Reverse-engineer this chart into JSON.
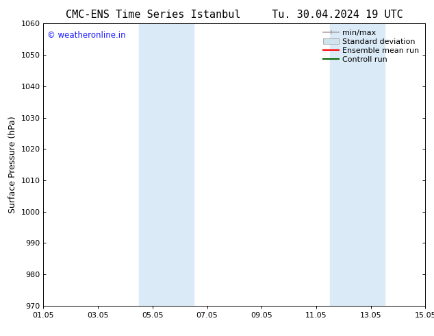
{
  "title": "CMC-ENS Time Series Istanbul     Tu. 30.04.2024 19 UTC",
  "ylabel": "Surface Pressure (hPa)",
  "xlabel_ticks": [
    "01.05",
    "03.05",
    "05.05",
    "07.05",
    "09.05",
    "11.05",
    "13.05",
    "15.05"
  ],
  "xtick_positions": [
    0,
    2,
    4,
    6,
    8,
    10,
    12,
    14
  ],
  "xlim": [
    0,
    14
  ],
  "ylim": [
    970,
    1060
  ],
  "yticks": [
    970,
    980,
    990,
    1000,
    1010,
    1020,
    1030,
    1040,
    1050,
    1060
  ],
  "background_color": "#ffffff",
  "plot_bg_color": "#ffffff",
  "shaded_bands": [
    {
      "x_start": 3.5,
      "x_end": 5.5,
      "color": "#daeaf7"
    },
    {
      "x_start": 10.5,
      "x_end": 12.5,
      "color": "#daeaf7"
    }
  ],
  "watermark_text": "© weatheronline.in",
  "watermark_color": "#1a1aff",
  "title_fontsize": 11,
  "tick_fontsize": 8,
  "ylabel_fontsize": 9,
  "legend_fontsize": 8
}
